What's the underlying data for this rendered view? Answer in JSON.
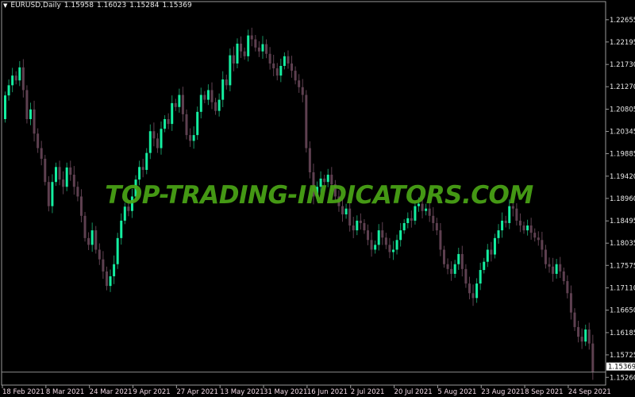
{
  "header": {
    "symbol": "EURUSD,Daily",
    "open": "1.15958",
    "high": "1.16023",
    "low": "1.15284",
    "close": "1.15369"
  },
  "watermark": "TOP-TRADING-INDICATORS.COM",
  "colors": {
    "background": "#000000",
    "bull_body": "#14eea0",
    "bull_wick": "#169060",
    "bear": "#5e4050",
    "grid_frame": "#9a9a9a",
    "price_label": "#e8e8e8",
    "date_label": "#f0d8e4",
    "watermark": "#4aa516"
  },
  "chart_data": {
    "type": "candlestick",
    "symbol": "EURUSD",
    "timeframe": "Daily",
    "ylim": [
      1.151,
      1.2303
    ],
    "y_ticks": [
      "1.22655",
      "1.22195",
      "1.21730",
      "1.21270",
      "1.20805",
      "1.20345",
      "1.19885",
      "1.19420",
      "1.18960",
      "1.18495",
      "1.18035",
      "1.17575",
      "1.17110",
      "1.16650",
      "1.16185",
      "1.15725",
      "1.15260"
    ],
    "x_ticks": [
      "18 Feb 2021",
      "8 Mar 2021",
      "24 Mar 2021",
      "9 Apr 2021",
      "27 Apr 2021",
      "13 May 2021",
      "31 May 2021",
      "16 Jun 2021",
      "2 Jul 2021",
      "20 Jul 2021",
      "5 Aug 2021",
      "23 Aug 2021",
      "8 Sep 2021",
      "24 Sep 2021"
    ],
    "bid_line": "1.15369",
    "first_open": 1.206,
    "close": [
      1.2109,
      1.213,
      1.215,
      1.214,
      1.2167,
      1.212,
      1.206,
      1.208,
      1.203,
      1.2,
      1.1978,
      1.193,
      1.188,
      1.193,
      1.1961,
      1.1935,
      1.192,
      1.196,
      1.1945,
      1.192,
      1.19,
      1.186,
      1.1814,
      1.18,
      1.183,
      1.179,
      1.177,
      1.1745,
      1.1715,
      1.1735,
      1.176,
      1.1814,
      1.185,
      1.1879,
      1.187,
      1.19,
      1.1935,
      1.1961,
      1.1955,
      1.199,
      1.2035,
      1.202,
      1.2,
      1.204,
      1.206,
      1.205,
      1.2093,
      1.2085,
      1.211,
      1.207,
      1.2027,
      1.2015,
      1.2027,
      1.2075,
      1.211,
      1.21,
      1.212,
      1.2095,
      1.2077,
      1.21,
      1.2142,
      1.213,
      1.2192,
      1.2175,
      1.2216,
      1.22,
      1.219,
      1.2233,
      1.2225,
      1.2208,
      1.22,
      1.2215,
      1.2195,
      1.2175,
      1.2165,
      1.215,
      1.217,
      1.219,
      1.2175,
      1.216,
      1.214,
      1.2126,
      1.211,
      1.2,
      1.195,
      1.19,
      1.192,
      1.1937,
      1.193,
      1.1945,
      1.1925,
      1.19,
      1.188,
      1.1863,
      1.1875,
      1.184,
      1.183,
      1.185,
      1.1845,
      1.183,
      1.181,
      1.179,
      1.18,
      1.183,
      1.1815,
      1.18,
      1.1785,
      1.179,
      1.181,
      1.183,
      1.1845,
      1.1855,
      1.185,
      1.188,
      1.1885,
      1.187,
      1.1875,
      1.186,
      1.1845,
      1.183,
      1.179,
      1.176,
      1.175,
      1.174,
      1.176,
      1.1781,
      1.175,
      1.172,
      1.17,
      1.169,
      1.172,
      1.1748,
      1.1765,
      1.179,
      1.178,
      1.1814,
      1.183,
      1.185,
      1.1845,
      1.188,
      1.1875,
      1.185,
      1.184,
      1.183,
      1.184,
      1.1825,
      1.1815,
      1.181,
      1.179,
      1.176,
      1.1755,
      1.174,
      1.176,
      1.1745,
      1.1725,
      1.17,
      1.166,
      1.163,
      1.161,
      1.16,
      1.1625,
      1.1596,
      1.1537
    ]
  }
}
